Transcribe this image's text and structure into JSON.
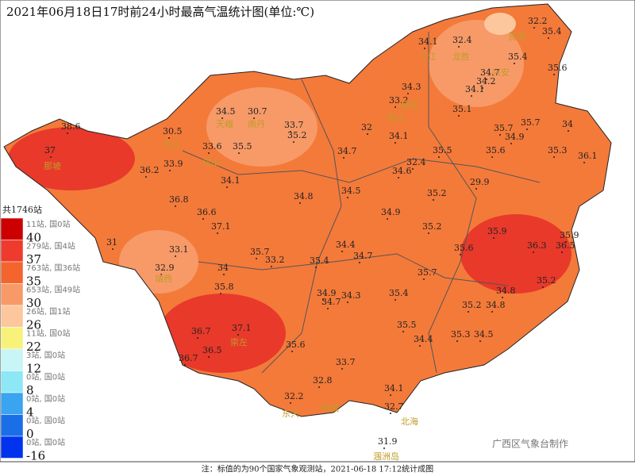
{
  "title": "2021年06月18日17时前24小时最高气温统计图(单位:℃)",
  "legend": {
    "total": "共1746站",
    "items": [
      {
        "count": "11站, 国0站",
        "threshold": "40"
      },
      {
        "count": "279站, 国4站",
        "threshold": "37"
      },
      {
        "count": "763站, 国36站",
        "threshold": "35"
      },
      {
        "count": "653站, 国49站",
        "threshold": "30"
      },
      {
        "count": "26站, 国1站",
        "threshold": "26"
      },
      {
        "count": "11站, 国0站",
        "threshold": "22"
      },
      {
        "count": "3站, 国0站",
        "threshold": "12"
      },
      {
        "count": "0站, 国0站",
        "threshold": "8"
      },
      {
        "count": "0站, 国0站",
        "threshold": "4"
      },
      {
        "count": "0站, 国0站",
        "threshold": "0"
      },
      {
        "count": "0站, 国0站",
        "threshold": "-16"
      }
    ]
  },
  "stations": [
    "32.2",
    "35.4",
    "34.1",
    "32.4",
    "35.4",
    "34.7",
    "35.6",
    "34.3",
    "34.2",
    "34.1",
    "33.2",
    "35.1",
    "34.5",
    "30.7",
    "33.7",
    "35.7",
    "35.7",
    "34",
    "38.6",
    "30.5",
    "32",
    "35.2",
    "34.1",
    "34.9",
    "33.6",
    "35.5",
    "37",
    "34.7",
    "35.5",
    "35.6",
    "35.3",
    "36.1",
    "33.9",
    "32.4",
    "36.2",
    "34.1",
    "34.6",
    "29.9",
    "34.8",
    "34.5",
    "35.2",
    "36.8",
    "36.6",
    "34.9",
    "37.1",
    "35.2",
    "35.9",
    "35.9",
    "31",
    "33.1",
    "34.4",
    "35.7",
    "36.3",
    "36.5",
    "35.6",
    "33.2",
    "34.7",
    "35.4",
    "32.9",
    "34",
    "35.7",
    "35.2",
    "35.8",
    "34.9",
    "34.3",
    "35.4",
    "34.8",
    "34.7",
    "35.2",
    "34.8",
    "35.5",
    "37.1",
    "36.7",
    "35.3",
    "34.5",
    "34.4",
    "35.6",
    "36.5",
    "36.7",
    "33.7",
    "32.8",
    "34.1",
    "32.2",
    "32.7",
    "31.9"
  ],
  "places": [
    "资源",
    "三江",
    "龙胜",
    "兴安",
    "融安",
    "融水",
    "天峨",
    "南丹",
    "东兰",
    "凤山",
    "那坡",
    "靖西",
    "崇左",
    "东兴",
    "防城",
    "北海",
    "涠洲岛"
  ],
  "credit": "广西区气象台制作",
  "footnote": "注：标值的为90个国家气象观测站，2021-06-18 17:12统计成图"
}
